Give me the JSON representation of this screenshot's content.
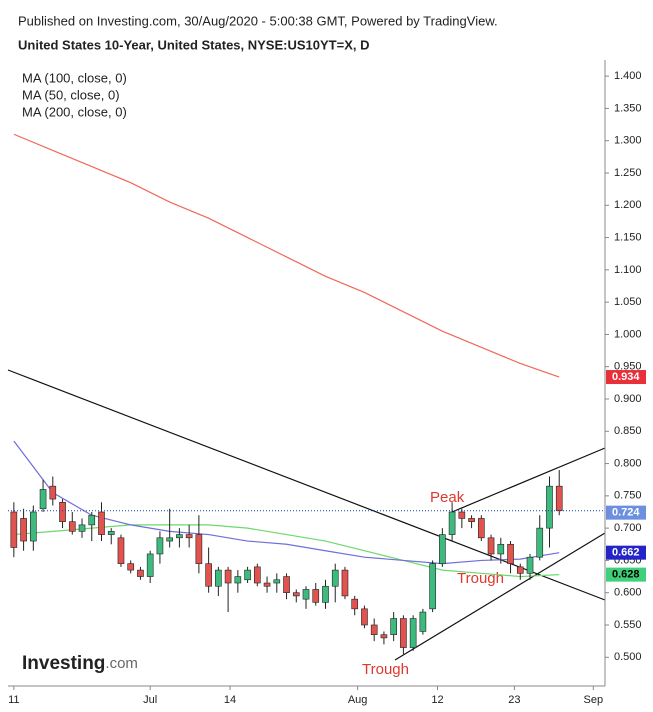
{
  "chart_data": {
    "type": "candlestick",
    "published": "Published on Investing.com, 30/Aug/2020 - 5:00:38 GMT, Powered by TradingView.",
    "title": "United States 10-Year, United States, NYSE:US10YT=X, D",
    "logo": {
      "brand": "Investing",
      "suffix": ".com"
    },
    "up_color": "#3dbb7f",
    "down_color": "#e0534f",
    "open": [
      0.725,
      0.715,
      0.68,
      0.73,
      0.765,
      0.74,
      0.71,
      0.695,
      0.705,
      0.725,
      0.69,
      0.685,
      0.645,
      0.635,
      0.625,
      0.66,
      0.68,
      0.685,
      0.69,
      0.69,
      0.645,
      0.61,
      0.635,
      0.615,
      0.62,
      0.64,
      0.615,
      0.615,
      0.625,
      0.6,
      0.59,
      0.605,
      0.585,
      0.61,
      0.635,
      0.59,
      0.575,
      0.55,
      0.535,
      0.535,
      0.56,
      0.515,
      0.54,
      0.575,
      0.645,
      0.69,
      0.725,
      0.715,
      0.715,
      0.685,
      0.66,
      0.675,
      0.64,
      0.63,
      0.655,
      0.7,
      0.765
    ],
    "high": [
      0.74,
      0.73,
      0.735,
      0.775,
      0.78,
      0.745,
      0.725,
      0.715,
      0.725,
      0.74,
      0.7,
      0.69,
      0.65,
      0.64,
      0.665,
      0.695,
      0.73,
      0.7,
      0.705,
      0.72,
      0.67,
      0.64,
      0.64,
      0.635,
      0.64,
      0.645,
      0.625,
      0.63,
      0.63,
      0.605,
      0.61,
      0.615,
      0.62,
      0.645,
      0.64,
      0.595,
      0.58,
      0.56,
      0.54,
      0.57,
      0.565,
      0.565,
      0.575,
      0.65,
      0.7,
      0.74,
      0.73,
      0.72,
      0.72,
      0.69,
      0.685,
      0.68,
      0.645,
      0.66,
      0.72,
      0.78,
      0.79
    ],
    "low": [
      0.655,
      0.665,
      0.665,
      0.725,
      0.735,
      0.7,
      0.69,
      0.685,
      0.68,
      0.68,
      0.675,
      0.64,
      0.63,
      0.62,
      0.615,
      0.645,
      0.67,
      0.67,
      0.67,
      0.63,
      0.6,
      0.595,
      0.57,
      0.6,
      0.615,
      0.61,
      0.6,
      0.6,
      0.59,
      0.585,
      0.575,
      0.58,
      0.575,
      0.585,
      0.59,
      0.565,
      0.545,
      0.525,
      0.52,
      0.525,
      0.505,
      0.51,
      0.535,
      0.57,
      0.64,
      0.68,
      0.7,
      0.7,
      0.68,
      0.65,
      0.645,
      0.63,
      0.62,
      0.62,
      0.65,
      0.67,
      0.72
    ],
    "close": [
      0.67,
      0.68,
      0.725,
      0.76,
      0.745,
      0.71,
      0.695,
      0.705,
      0.72,
      0.69,
      0.695,
      0.645,
      0.635,
      0.625,
      0.66,
      0.685,
      0.685,
      0.69,
      0.685,
      0.645,
      0.61,
      0.635,
      0.615,
      0.625,
      0.635,
      0.615,
      0.61,
      0.62,
      0.6,
      0.595,
      0.605,
      0.585,
      0.61,
      0.635,
      0.595,
      0.575,
      0.55,
      0.535,
      0.53,
      0.56,
      0.515,
      0.56,
      0.57,
      0.645,
      0.69,
      0.725,
      0.715,
      0.71,
      0.685,
      0.66,
      0.675,
      0.645,
      0.63,
      0.655,
      0.7,
      0.765,
      0.727
    ],
    "ma_series": [
      {
        "name": "MA (100, close, 0)",
        "color": "#6bd96b",
        "x": [
          0,
          4,
          8,
          12,
          16,
          20,
          24,
          28,
          32,
          36,
          40,
          44,
          48,
          52,
          56
        ],
        "values": [
          0.69,
          0.695,
          0.7,
          0.705,
          0.705,
          0.705,
          0.7,
          0.69,
          0.68,
          0.665,
          0.65,
          0.635,
          0.63,
          0.625,
          0.628
        ]
      },
      {
        "name": "MA (50, close, 0)",
        "color": "#6f6fd8",
        "x": [
          0,
          4,
          8,
          12,
          16,
          20,
          24,
          28,
          32,
          36,
          40,
          44,
          48,
          52,
          56
        ],
        "values": [
          0.835,
          0.755,
          0.72,
          0.705,
          0.695,
          0.69,
          0.68,
          0.675,
          0.665,
          0.655,
          0.65,
          0.645,
          0.65,
          0.652,
          0.662
        ]
      },
      {
        "name": "MA (200, close, 0)",
        "color": "#ef6a5a",
        "x": [
          0,
          4,
          8,
          12,
          16,
          20,
          24,
          28,
          32,
          36,
          40,
          44,
          48,
          52,
          56
        ],
        "values": [
          1.31,
          1.285,
          1.26,
          1.235,
          1.205,
          1.18,
          1.15,
          1.12,
          1.09,
          1.065,
          1.035,
          1.005,
          0.98,
          0.955,
          0.934
        ]
      }
    ],
    "price_labels": [
      {
        "value": 0.934,
        "color": "#e8303a",
        "text_color": "#ffffff"
      },
      {
        "value": 0.727,
        "color": "#ffffff",
        "text_color": "#000000"
      },
      {
        "value": 0.724,
        "color": "#6c8fe0",
        "text_color": "#ffffff"
      },
      {
        "value": 0.662,
        "color": "#2323c8",
        "text_color": "#ffffff"
      },
      {
        "value": 0.628,
        "color": "#3fd07a",
        "text_color": "#000000"
      }
    ],
    "annotations": [
      "Peak",
      "Trough",
      "Trough"
    ],
    "xlim": [
      -0.6,
      60.7
    ],
    "xticks": [
      {
        "value": 0,
        "label": "11"
      },
      {
        "value": 14,
        "label": "Jul"
      },
      {
        "value": 22.2,
        "label": "14"
      },
      {
        "value": 35.3,
        "label": "Aug"
      },
      {
        "value": 43.5,
        "label": "12"
      },
      {
        "value": 51.4,
        "label": "23"
      },
      {
        "value": 59.5,
        "label": "Sep"
      }
    ],
    "ylim": [
      0.4555,
      1.425
    ],
    "yticks": [
      {
        "value": 0.5,
        "label": "0.500"
      },
      {
        "value": 0.55,
        "label": "0.550"
      },
      {
        "value": 0.6,
        "label": "0.600"
      },
      {
        "value": 0.65,
        "label": "0.650"
      },
      {
        "value": 0.7,
        "label": "0.700"
      },
      {
        "value": 0.75,
        "label": "0.750"
      },
      {
        "value": 0.8,
        "label": "0.800"
      },
      {
        "value": 0.85,
        "label": "0.850"
      },
      {
        "value": 0.9,
        "label": "0.900"
      },
      {
        "value": 0.95,
        "label": "0.950"
      },
      {
        "value": 1.0,
        "label": "1.000"
      },
      {
        "value": 1.05,
        "label": "1.050"
      },
      {
        "value": 1.1,
        "label": "1.100"
      },
      {
        "value": 1.15,
        "label": "1.150"
      },
      {
        "value": 1.2,
        "label": "1.200"
      },
      {
        "value": 1.25,
        "label": "1.250"
      },
      {
        "value": 1.3,
        "label": "1.300"
      },
      {
        "value": 1.35,
        "label": "1.350"
      },
      {
        "value": 1.4,
        "label": "1.400"
      }
    ]
  }
}
